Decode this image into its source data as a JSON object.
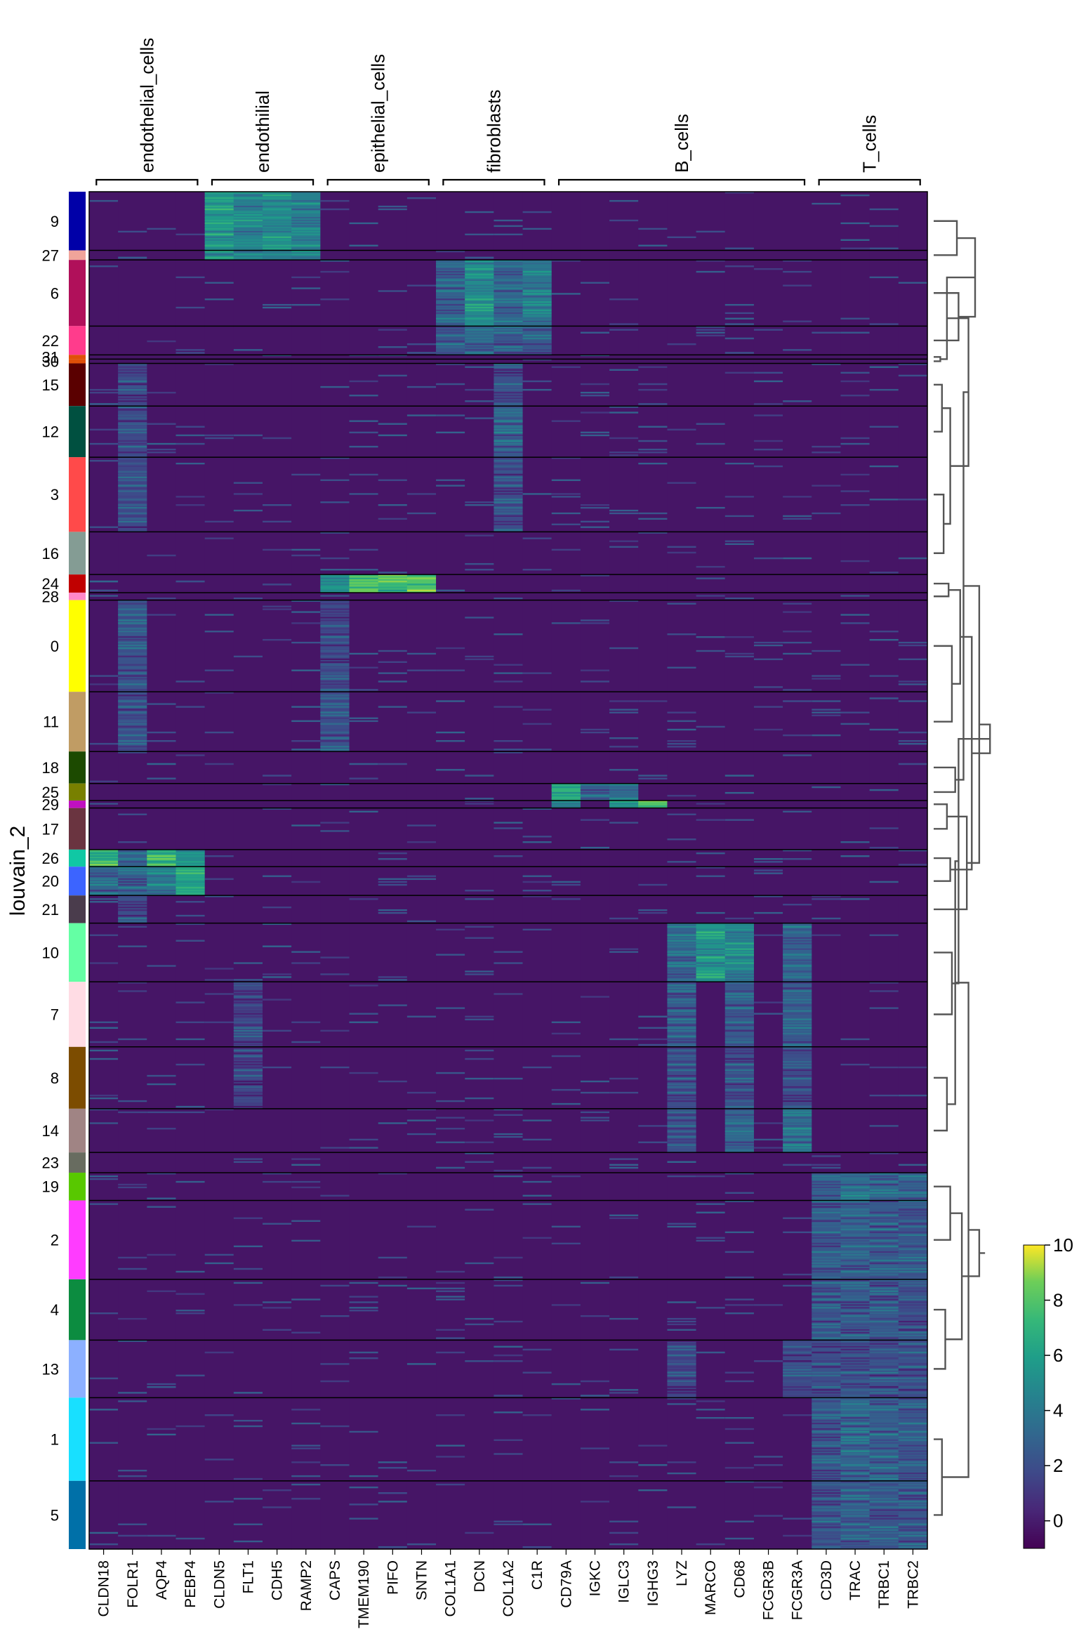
{
  "chart_data": {
    "type": "heatmap",
    "title": "",
    "ylabel": "louvain_2",
    "xlabel": "",
    "colormap": "viridis",
    "colorbar": {
      "min": -1,
      "max": 10,
      "ticks": [
        "10",
        "8",
        "6",
        "4",
        "2",
        "0"
      ]
    },
    "gene_groups": [
      {
        "name": "endothelial_cells",
        "genes": [
          "CLDN18",
          "FOLR1",
          "AQP4",
          "PEBP4"
        ]
      },
      {
        "name": "endothilial",
        "genes": [
          "CLDN5",
          "FLT1",
          "CDH5",
          "RAMP2"
        ]
      },
      {
        "name": "epithelial_cells",
        "genes": [
          "CAPS",
          "TMEM190",
          "PIFO",
          "SNTN"
        ]
      },
      {
        "name": "fibroblasts",
        "genes": [
          "COL1A1",
          "DCN",
          "COL1A2",
          "C1R"
        ]
      },
      {
        "name": "B_cells",
        "genes": [
          "CD79A",
          "IGKC",
          "IGLC3",
          "IGHG3",
          "LYZ",
          "MARCO",
          "CD68",
          "FCGR3B",
          "FCGR3A"
        ]
      },
      {
        "name": "T_cells",
        "genes": [
          "CD3D",
          "TRAC",
          "TRBC1",
          "TRBC2"
        ]
      }
    ],
    "genes": [
      "CLDN18",
      "FOLR1",
      "AQP4",
      "PEBP4",
      "CLDN5",
      "FLT1",
      "CDH5",
      "RAMP2",
      "CAPS",
      "TMEM190",
      "PIFO",
      "SNTN",
      "COL1A1",
      "DCN",
      "COL1A2",
      "C1R",
      "CD79A",
      "IGKC",
      "IGLC3",
      "IGHG3",
      "LYZ",
      "MARCO",
      "CD68",
      "FCGR3B",
      "FCGR3A",
      "CD3D",
      "TRAC",
      "TRBC1",
      "TRBC2"
    ],
    "clusters": [
      {
        "label": "9",
        "color": "#0000a8",
        "weight": 55,
        "highs": {
          "CLDN5": 5.5,
          "FLT1": 4.5,
          "CDH5": 5,
          "RAMP2": 4.5
        }
      },
      {
        "label": "27",
        "color": "#f0a49a",
        "weight": 9,
        "highs": {
          "CLDN5": 5,
          "FLT1": 4,
          "CDH5": 4,
          "RAMP2": 4
        }
      },
      {
        "label": "6",
        "color": "#b0105a",
        "weight": 62,
        "highs": {
          "COL1A1": 3,
          "DCN": 5,
          "COL1A2": 3,
          "C1R": 4
        }
      },
      {
        "label": "22",
        "color": "#ff3c8c",
        "weight": 27,
        "highs": {
          "COL1A1": 2.5,
          "DCN": 3,
          "COL1A2": 2.5,
          "C1R": 2.5
        }
      },
      {
        "label": "31",
        "color": "#e05008",
        "weight": 4,
        "highs": {}
      },
      {
        "label": "30",
        "color": "#e05008",
        "weight": 4,
        "highs": {}
      },
      {
        "label": "15",
        "color": "#5a0000",
        "weight": 40,
        "highs": {
          "FOLR1": 1.8,
          "COL1A2": 2
        }
      },
      {
        "label": "12",
        "color": "#005040",
        "weight": 48,
        "highs": {
          "FOLR1": 1.8,
          "COL1A2": 2.8
        }
      },
      {
        "label": "3",
        "color": "#ff4a4a",
        "weight": 70,
        "highs": {
          "FOLR1": 1.8,
          "COL1A2": 2
        }
      },
      {
        "label": "16",
        "color": "#849c94",
        "weight": 40,
        "highs": {}
      },
      {
        "label": "24",
        "color": "#c00000",
        "weight": 17,
        "highs": {
          "CAPS": 5.5,
          "TMEM190": 8.5,
          "PIFO": 7.5,
          "SNTN": 8
        }
      },
      {
        "label": "28",
        "color": "#ff88c8",
        "weight": 7,
        "highs": {}
      },
      {
        "label": "0",
        "color": "#ffff00",
        "weight": 86,
        "highs": {
          "FOLR1": 2.2,
          "CAPS": 1.8
        }
      },
      {
        "label": "11",
        "color": "#c09c64",
        "weight": 56,
        "highs": {
          "FOLR1": 2,
          "CAPS": 2
        }
      },
      {
        "label": "18",
        "color": "#1c4a00",
        "weight": 30,
        "highs": {}
      },
      {
        "label": "25",
        "color": "#788000",
        "weight": 16,
        "highs": {
          "CD79A": 7,
          "IGKC": 3,
          "IGLC3": 3.5
        }
      },
      {
        "label": "29",
        "color": "#c010c0",
        "weight": 7,
        "highs": {
          "CD79A": 5,
          "IGLC3": 6,
          "IGHG3": 8
        }
      },
      {
        "label": "17",
        "color": "#6a3440",
        "weight": 39,
        "highs": {}
      },
      {
        "label": "26",
        "color": "#10c8a4",
        "weight": 16,
        "highs": {
          "CLDN18": 7,
          "FOLR1": 3,
          "AQP4": 7,
          "PEBP4": 5
        }
      },
      {
        "label": "20",
        "color": "#3c64ff",
        "weight": 27,
        "highs": {
          "CLDN18": 3,
          "FOLR1": 3,
          "AQP4": 4,
          "PEBP4": 6
        }
      },
      {
        "label": "21",
        "color": "#4a3c4c",
        "weight": 26,
        "highs": {
          "FOLR1": 2
        }
      },
      {
        "label": "10",
        "color": "#64ffa4",
        "weight": 55,
        "highs": {
          "LYZ": 3,
          "MARCO": 5.5,
          "CD68": 4.5,
          "FCGR3A": 3
        }
      },
      {
        "label": "7",
        "color": "#ffdce4",
        "weight": 61,
        "highs": {
          "FLT1": 1.5,
          "LYZ": 2.5,
          "CD68": 2.5,
          "FCGR3A": 2.5
        }
      },
      {
        "label": "8",
        "color": "#7c4c00",
        "weight": 58,
        "highs": {
          "FLT1": 1.5,
          "LYZ": 2,
          "CD68": 2,
          "FCGR3A": 2
        }
      },
      {
        "label": "14",
        "color": "#a08484",
        "weight": 41,
        "highs": {
          "LYZ": 2,
          "CD68": 3,
          "FCGR3A": 3.5
        }
      },
      {
        "label": "23",
        "color": "#686c60",
        "weight": 19,
        "highs": {}
      },
      {
        "label": "19",
        "color": "#58c800",
        "weight": 26,
        "highs": {
          "CD3D": 3,
          "TRAC": 3.5,
          "TRBC1": 3,
          "TRBC2": 3
        }
      },
      {
        "label": "2",
        "color": "#ff3cff",
        "weight": 74,
        "highs": {
          "CD3D": 2.5,
          "TRAC": 2.8,
          "TRBC1": 2.5,
          "TRBC2": 2.3
        }
      },
      {
        "label": "4",
        "color": "#0c8c40",
        "weight": 57,
        "highs": {
          "CD3D": 2.3,
          "TRAC": 2.5,
          "TRBC1": 2.3,
          "TRBC2": 2
        }
      },
      {
        "label": "13",
        "color": "#8cb0ff",
        "weight": 54,
        "highs": {
          "LYZ": 1.5,
          "FCGR3A": 1.8,
          "CD3D": 2,
          "TRAC": 2.3,
          "TRBC1": 2,
          "TRBC2": 2
        }
      },
      {
        "label": "1",
        "color": "#18e0ff",
        "weight": 78,
        "highs": {
          "CD3D": 2.5,
          "TRAC": 3,
          "TRBC1": 2.8,
          "TRBC2": 2.5
        }
      },
      {
        "label": "5",
        "color": "#0070a8",
        "weight": 64,
        "highs": {
          "CD3D": 2.3,
          "TRAC": 2.5,
          "TRBC1": 2.3,
          "TRBC2": 2.3
        }
      }
    ],
    "dendrogram": "hierarchical clustering of louvain_2 groups (shown at right)"
  }
}
